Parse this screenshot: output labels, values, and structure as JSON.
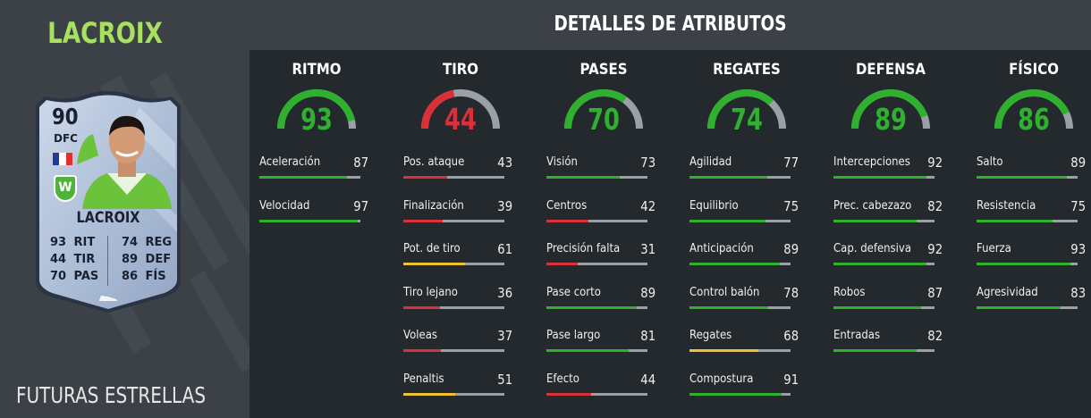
{
  "player": {
    "name": "LACROIX",
    "card_name": "LACROIX",
    "rating": "90",
    "position": "DFC",
    "promo": "FUTURAS ESTRELLAS",
    "card_stats": [
      {
        "value": "93",
        "label": "RIT"
      },
      {
        "value": "44",
        "label": "TIR"
      },
      {
        "value": "70",
        "label": "PAS"
      },
      {
        "value": "74",
        "label": "REG"
      },
      {
        "value": "89",
        "label": "DEF"
      },
      {
        "value": "86",
        "label": "FÍS"
      }
    ],
    "flag_colors": [
      "#1f3c9b",
      "#ffffff",
      "#e0312f"
    ],
    "club_badge": "W"
  },
  "header": {
    "title": "DETALLES DE ATRIBUTOS"
  },
  "colors": {
    "high": "#2fb12f",
    "mid": "#f2c12e",
    "low": "#d9303a",
    "track": "#9aa0a6"
  },
  "categories": [
    {
      "title": "RITMO",
      "value": 93,
      "attributes": [
        {
          "label": "Aceleración",
          "value": 87
        },
        {
          "label": "Velocidad",
          "value": 97
        }
      ]
    },
    {
      "title": "TIRO",
      "value": 44,
      "attributes": [
        {
          "label": "Pos. ataque",
          "value": 43
        },
        {
          "label": "Finalización",
          "value": 39
        },
        {
          "label": "Pot. de tiro",
          "value": 61
        },
        {
          "label": "Tiro lejano",
          "value": 36
        },
        {
          "label": "Voleas",
          "value": 37
        },
        {
          "label": "Penaltis",
          "value": 51
        }
      ]
    },
    {
      "title": "PASES",
      "value": 70,
      "attributes": [
        {
          "label": "Visión",
          "value": 73
        },
        {
          "label": "Centros",
          "value": 42
        },
        {
          "label": "Precisión falta",
          "value": 31
        },
        {
          "label": "Pase corto",
          "value": 89
        },
        {
          "label": "Pase largo",
          "value": 81
        },
        {
          "label": "Efecto",
          "value": 44
        }
      ]
    },
    {
      "title": "REGATES",
      "value": 74,
      "attributes": [
        {
          "label": "Agilidad",
          "value": 77
        },
        {
          "label": "Equilibrio",
          "value": 75
        },
        {
          "label": "Anticipación",
          "value": 89
        },
        {
          "label": "Control balón",
          "value": 78
        },
        {
          "label": "Regates",
          "value": 68
        },
        {
          "label": "Compostura",
          "value": 91
        }
      ]
    },
    {
      "title": "DEFENSA",
      "value": 89,
      "attributes": [
        {
          "label": "Intercepciones",
          "value": 92
        },
        {
          "label": "Prec. cabezazo",
          "value": 82
        },
        {
          "label": "Cap. defensiva",
          "value": 92
        },
        {
          "label": "Robos",
          "value": 87
        },
        {
          "label": "Entradas",
          "value": 82
        }
      ]
    },
    {
      "title": "FÍSICO",
      "value": 86,
      "attributes": [
        {
          "label": "Salto",
          "value": 89
        },
        {
          "label": "Resistencia",
          "value": 75
        },
        {
          "label": "Fuerza",
          "value": 93
        },
        {
          "label": "Agresividad",
          "value": 83
        }
      ]
    }
  ]
}
